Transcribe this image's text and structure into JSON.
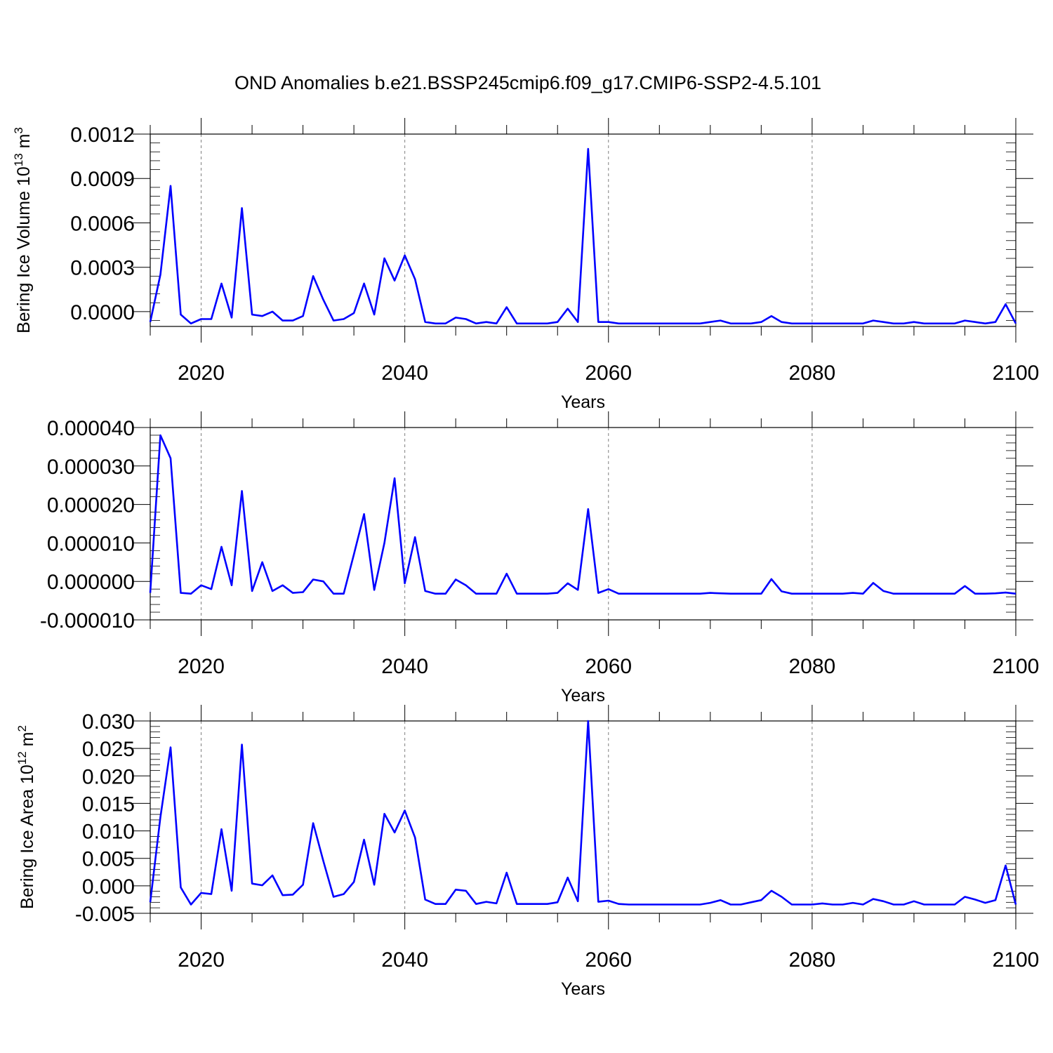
{
  "title": "OND Anomalies b.e21.BSSP245cmip6.f09_g17.CMIP6-SSP2-4.5.101",
  "chart_data": [
    {
      "type": "line",
      "xlabel": "Years",
      "ylabel": {
        "base": "Bering Ice Volume 10",
        "sup1": "13",
        "mid": " m",
        "sup2": "3"
      },
      "xlim": [
        2015,
        2100
      ],
      "ylim": [
        -0.0001,
        0.0012
      ],
      "xticks": [
        2020,
        2040,
        2060,
        2080,
        2100
      ],
      "xtick_labels": [
        "2020",
        "2040",
        "2060",
        "2080",
        "2100"
      ],
      "yticks": [
        0.0,
        0.0003,
        0.0006,
        0.0009,
        0.0012
      ],
      "ytick_labels": [
        "0.0000",
        "0.0003",
        "0.0006",
        "0.0009",
        "0.0012"
      ],
      "grid": "vertical dashed at major x ticks",
      "color": "#0000ff",
      "x": [
        2015,
        2016,
        2017,
        2018,
        2019,
        2020,
        2021,
        2022,
        2023,
        2024,
        2025,
        2026,
        2027,
        2028,
        2029,
        2030,
        2031,
        2032,
        2033,
        2034,
        2035,
        2036,
        2037,
        2038,
        2039,
        2040,
        2041,
        2042,
        2043,
        2044,
        2045,
        2046,
        2047,
        2048,
        2049,
        2050,
        2051,
        2052,
        2053,
        2054,
        2055,
        2056,
        2057,
        2058,
        2059,
        2060,
        2061,
        2062,
        2063,
        2064,
        2065,
        2066,
        2067,
        2068,
        2069,
        2070,
        2071,
        2072,
        2073,
        2074,
        2075,
        2076,
        2077,
        2078,
        2079,
        2080,
        2081,
        2082,
        2083,
        2084,
        2085,
        2086,
        2087,
        2088,
        2089,
        2090,
        2091,
        2092,
        2093,
        2094,
        2095,
        2096,
        2097,
        2098,
        2099,
        2100
      ],
      "values": [
        -7e-05,
        0.00025,
        0.00085,
        -2e-05,
        -8e-05,
        -5e-05,
        -5e-05,
        0.00019,
        -4e-05,
        0.0007,
        -2e-05,
        -3e-05,
        0.0,
        -6e-05,
        -6e-05,
        -3e-05,
        0.00024,
        8e-05,
        -6e-05,
        -5e-05,
        -1e-05,
        0.00019,
        -2e-05,
        0.00036,
        0.00021,
        0.00038,
        0.00022,
        -7e-05,
        -8e-05,
        -8e-05,
        -4e-05,
        -5e-05,
        -8e-05,
        -7e-05,
        -8e-05,
        3e-05,
        -8e-05,
        -8e-05,
        -8e-05,
        -8e-05,
        -7e-05,
        2e-05,
        -7e-05,
        0.0011,
        -7e-05,
        -7e-05,
        -8e-05,
        -8e-05,
        -8e-05,
        -8e-05,
        -8e-05,
        -8e-05,
        -8e-05,
        -8e-05,
        -8e-05,
        -7e-05,
        -6e-05,
        -8e-05,
        -8e-05,
        -8e-05,
        -7e-05,
        -3e-05,
        -7e-05,
        -8e-05,
        -8e-05,
        -8e-05,
        -8e-05,
        -8e-05,
        -8e-05,
        -8e-05,
        -8e-05,
        -6e-05,
        -7e-05,
        -8e-05,
        -8e-05,
        -7e-05,
        -8e-05,
        -8e-05,
        -8e-05,
        -8e-05,
        -6e-05,
        -7e-05,
        -8e-05,
        -7e-05,
        5e-05,
        -8e-05
      ]
    },
    {
      "type": "line",
      "xlabel": "Years",
      "ylabel": {
        "base": "",
        "sup1": "",
        "mid": "",
        "sup2": ""
      },
      "xlim": [
        2015,
        2100
      ],
      "ylim": [
        -1e-05,
        4e-05
      ],
      "xticks": [
        2020,
        2040,
        2060,
        2080,
        2100
      ],
      "xtick_labels": [
        "2020",
        "2040",
        "2060",
        "2080",
        "2100"
      ],
      "yticks": [
        -1e-05,
        0.0,
        1e-05,
        2e-05,
        3e-05,
        4e-05
      ],
      "ytick_labels": [
        "-0.000010",
        "0.000000",
        "0.000010",
        "0.000020",
        "0.000030",
        "0.000040"
      ],
      "grid": "vertical dashed at major x ticks",
      "color": "#0000ff",
      "x": [
        2015,
        2016,
        2017,
        2018,
        2019,
        2020,
        2021,
        2022,
        2023,
        2024,
        2025,
        2026,
        2027,
        2028,
        2029,
        2030,
        2031,
        2032,
        2033,
        2034,
        2035,
        2036,
        2037,
        2038,
        2039,
        2040,
        2041,
        2042,
        2043,
        2044,
        2045,
        2046,
        2047,
        2048,
        2049,
        2050,
        2051,
        2052,
        2053,
        2054,
        2055,
        2056,
        2057,
        2058,
        2059,
        2060,
        2061,
        2062,
        2063,
        2064,
        2065,
        2066,
        2067,
        2068,
        2069,
        2070,
        2071,
        2072,
        2073,
        2074,
        2075,
        2076,
        2077,
        2078,
        2079,
        2080,
        2081,
        2082,
        2083,
        2084,
        2085,
        2086,
        2087,
        2088,
        2089,
        2090,
        2091,
        2092,
        2093,
        2094,
        2095,
        2096,
        2097,
        2098,
        2099,
        2100
      ],
      "values": [
        -3e-06,
        3.8e-05,
        3.2e-05,
        -3e-06,
        -3.2e-06,
        -1e-06,
        -2e-06,
        9e-06,
        -1e-06,
        2.35e-05,
        -2.5e-06,
        5e-06,
        -2.5e-06,
        -1e-06,
        -3e-06,
        -2.8e-06,
        5e-07,
        0.0,
        -3.2e-06,
        -3.2e-06,
        7e-06,
        1.75e-05,
        -2.2e-06,
        1e-05,
        2.68e-05,
        -5e-07,
        1.15e-05,
        -2.5e-06,
        -3.2e-06,
        -3.2e-06,
        5e-07,
        -1e-06,
        -3.2e-06,
        -3.2e-06,
        -3.2e-06,
        2e-06,
        -3.2e-06,
        -3.2e-06,
        -3.2e-06,
        -3.2e-06,
        -3e-06,
        -5e-07,
        -2.2e-06,
        1.88e-05,
        -3e-06,
        -2e-06,
        -3.2e-06,
        -3.2e-06,
        -3.2e-06,
        -3.2e-06,
        -3.2e-06,
        -3.2e-06,
        -3.2e-06,
        -3.2e-06,
        -3.2e-06,
        -3e-06,
        -3.1e-06,
        -3.2e-06,
        -3.2e-06,
        -3.2e-06,
        -3.2e-06,
        6e-07,
        -2.6e-06,
        -3.2e-06,
        -3.2e-06,
        -3.2e-06,
        -3.2e-06,
        -3.2e-06,
        -3.2e-06,
        -3e-06,
        -3.2e-06,
        -4e-07,
        -2.5e-06,
        -3.2e-06,
        -3.2e-06,
        -3.2e-06,
        -3.2e-06,
        -3.2e-06,
        -3.2e-06,
        -3.2e-06,
        -1.2e-06,
        -3.2e-06,
        -3.2e-06,
        -3.1e-06,
        -2.9e-06,
        -3.2e-06
      ]
    },
    {
      "type": "line",
      "xlabel": "Years",
      "ylabel": {
        "base": "Bering Ice Area 10",
        "sup1": "12",
        "mid": " m",
        "sup2": "2"
      },
      "xlim": [
        2015,
        2100
      ],
      "ylim": [
        -0.005,
        0.03
      ],
      "xticks": [
        2020,
        2040,
        2060,
        2080,
        2100
      ],
      "xtick_labels": [
        "2020",
        "2040",
        "2060",
        "2080",
        "2100"
      ],
      "yticks": [
        -0.005,
        0.0,
        0.005,
        0.01,
        0.015,
        0.02,
        0.025,
        0.03
      ],
      "ytick_labels": [
        "-0.005",
        "0.000",
        "0.005",
        "0.010",
        "0.015",
        "0.020",
        "0.025",
        "0.030"
      ],
      "grid": "vertical dashed at major x ticks",
      "color": "#0000ff",
      "x": [
        2015,
        2016,
        2017,
        2018,
        2019,
        2020,
        2021,
        2022,
        2023,
        2024,
        2025,
        2026,
        2027,
        2028,
        2029,
        2030,
        2031,
        2032,
        2033,
        2034,
        2035,
        2036,
        2037,
        2038,
        2039,
        2040,
        2041,
        2042,
        2043,
        2044,
        2045,
        2046,
        2047,
        2048,
        2049,
        2050,
        2051,
        2052,
        2053,
        2054,
        2055,
        2056,
        2057,
        2058,
        2059,
        2060,
        2061,
        2062,
        2063,
        2064,
        2065,
        2066,
        2067,
        2068,
        2069,
        2070,
        2071,
        2072,
        2073,
        2074,
        2075,
        2076,
        2077,
        2078,
        2079,
        2080,
        2081,
        2082,
        2083,
        2084,
        2085,
        2086,
        2087,
        2088,
        2089,
        2090,
        2091,
        2092,
        2093,
        2094,
        2095,
        2096,
        2097,
        2098,
        2099,
        2100
      ],
      "values": [
        -0.003,
        0.0125,
        0.0252,
        -0.0003,
        -0.0034,
        -0.0013,
        -0.0015,
        0.0103,
        -0.0009,
        0.0257,
        0.0004,
        0.0001,
        0.0019,
        -0.0017,
        -0.0016,
        0.0002,
        0.0114,
        0.0045,
        -0.002,
        -0.0015,
        0.0007,
        0.0084,
        0.0002,
        0.0131,
        0.0097,
        0.0137,
        0.0088,
        -0.0025,
        -0.0033,
        -0.0033,
        -0.0007,
        -0.0009,
        -0.0033,
        -0.0029,
        -0.0032,
        0.0024,
        -0.0033,
        -0.0033,
        -0.0033,
        -0.0033,
        -0.003,
        0.0015,
        -0.0028,
        0.03,
        -0.0029,
        -0.0027,
        -0.0033,
        -0.0034,
        -0.0034,
        -0.0034,
        -0.0034,
        -0.0034,
        -0.0034,
        -0.0034,
        -0.0034,
        -0.0031,
        -0.0026,
        -0.0034,
        -0.0034,
        -0.003,
        -0.0026,
        -0.0009,
        -0.002,
        -0.0034,
        -0.0034,
        -0.0034,
        -0.0032,
        -0.0034,
        -0.0034,
        -0.0031,
        -0.0034,
        -0.0024,
        -0.0028,
        -0.0034,
        -0.0034,
        -0.0028,
        -0.0034,
        -0.0034,
        -0.0034,
        -0.0034,
        -0.002,
        -0.0025,
        -0.0031,
        -0.0026,
        0.0037,
        -0.0034
      ]
    }
  ]
}
